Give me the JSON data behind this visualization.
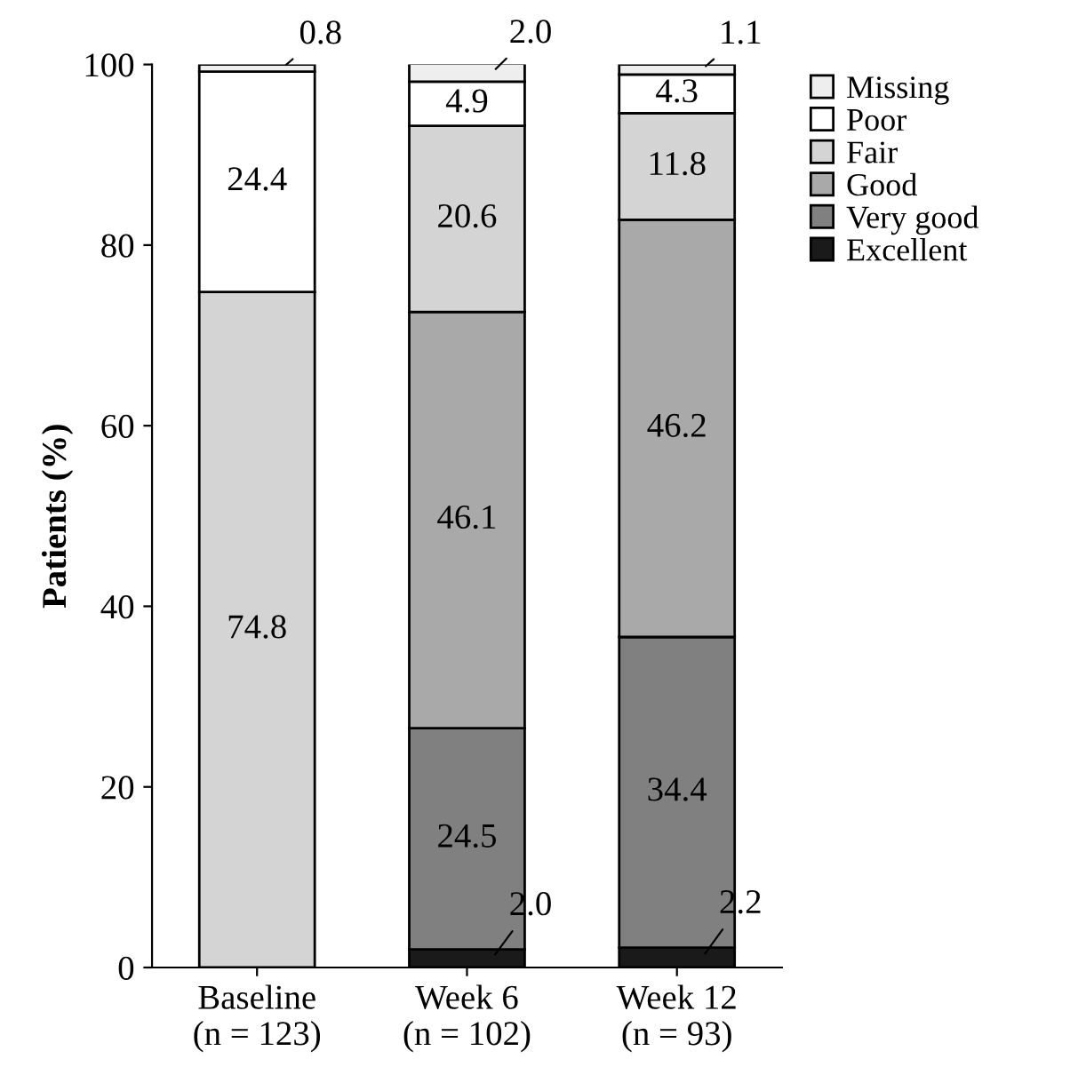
{
  "chart_data": {
    "type": "bar",
    "stacked": true,
    "ylabel": "Patients (%)",
    "categories": [
      "Baseline\n(n = 123)",
      "Week 6\n(n = 102)",
      "Week 12\n(n = 93)"
    ],
    "series": [
      {
        "name": "Excellent",
        "color": "#1a1a1a",
        "values": [
          0,
          2.0,
          2.2
        ],
        "value_labels": [
          null,
          "2.0",
          "2.2"
        ]
      },
      {
        "name": "Very good",
        "color": "#808080",
        "values": [
          0,
          24.5,
          34.4
        ],
        "value_labels": [
          null,
          "24.5",
          "34.4"
        ]
      },
      {
        "name": "Good",
        "color": "#a9a9a9",
        "values": [
          0,
          46.1,
          46.2
        ],
        "value_labels": [
          null,
          "46.1",
          "46.2"
        ]
      },
      {
        "name": "Fair",
        "color": "#d4d4d4",
        "values": [
          74.8,
          20.6,
          11.8
        ],
        "value_labels": [
          "74.8",
          "20.6",
          "11.8"
        ]
      },
      {
        "name": "Poor",
        "color": "#ffffff",
        "values": [
          24.4,
          4.9,
          4.3
        ],
        "value_labels": [
          "24.4",
          "4.9",
          "4.3"
        ]
      },
      {
        "name": "Missing",
        "color": "#eeeeee",
        "values": [
          0.8,
          2.0,
          1.1
        ],
        "value_labels": [
          "0.8",
          "2.0",
          "1.1"
        ]
      }
    ],
    "ylim": [
      0,
      100
    ],
    "yticks": [
      0,
      20,
      40,
      60,
      80,
      100
    ],
    "grid": false,
    "legend": "top right"
  }
}
